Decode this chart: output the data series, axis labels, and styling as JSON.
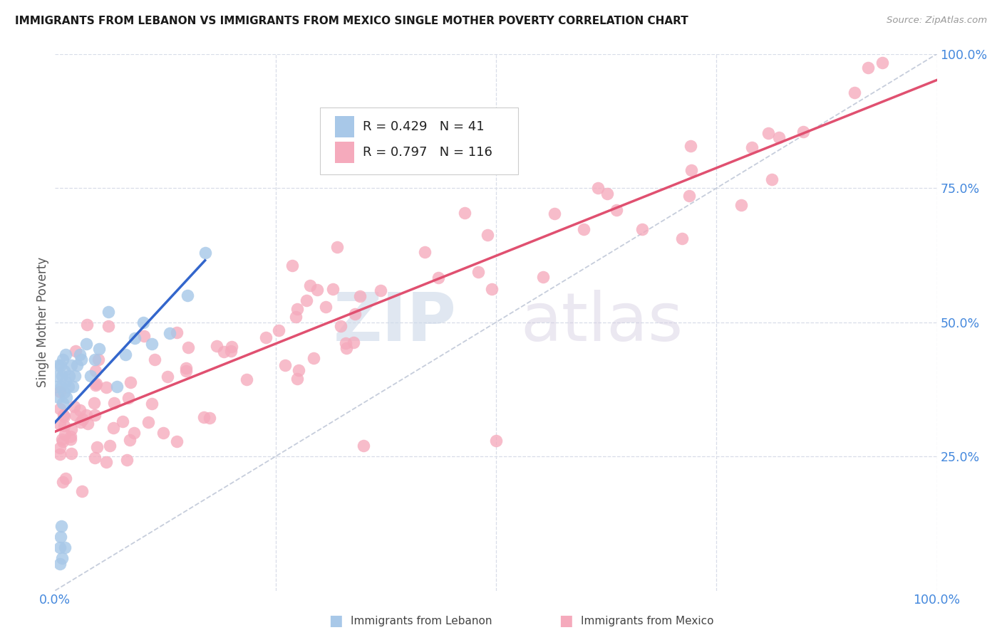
{
  "title": "IMMIGRANTS FROM LEBANON VS IMMIGRANTS FROM MEXICO SINGLE MOTHER POVERTY CORRELATION CHART",
  "source": "Source: ZipAtlas.com",
  "ylabel": "Single Mother Poverty",
  "xlim": [
    0,
    1.0
  ],
  "ylim": [
    0,
    1.0
  ],
  "lebanon_R": 0.429,
  "lebanon_N": 41,
  "mexico_R": 0.797,
  "mexico_N": 116,
  "lebanon_color": "#a8c8e8",
  "mexico_color": "#f5aabc",
  "lebanon_line_color": "#3366cc",
  "mexico_line_color": "#e05070",
  "diagonal_color": "#c0c8d8",
  "background_color": "#ffffff",
  "grid_color": "#d8dde8",
  "title_color": "#1a1a1a",
  "source_color": "#999999",
  "axis_label_color": "#4488dd",
  "ylabel_color": "#555555",
  "legend_text_color": "#222222",
  "watermark_zip_color": "#ccd8e8",
  "watermark_atlas_color": "#d4cce0"
}
